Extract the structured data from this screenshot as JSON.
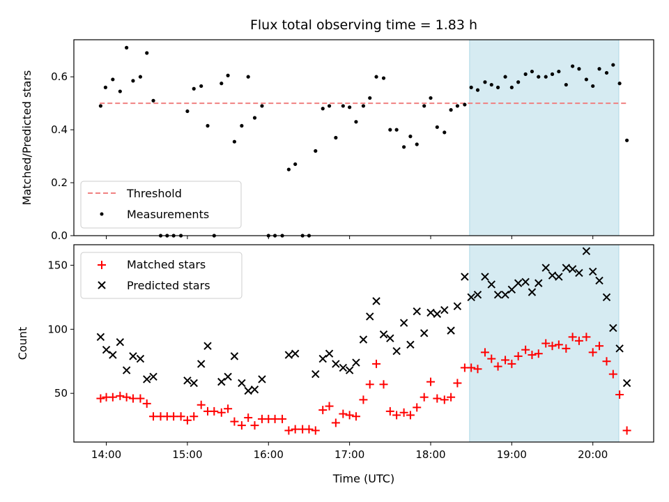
{
  "chart_data": {
    "type": "scatter",
    "title": "Flux total observing time = 1.83 h",
    "xlabel": "Time (UTC)",
    "x_tick_labels": [
      "14:00",
      "15:00",
      "16:00",
      "17:00",
      "18:00",
      "19:00",
      "20:00"
    ],
    "x_ticks": [
      14,
      15,
      16,
      17,
      18,
      19,
      20
    ],
    "xlim": [
      13.6,
      20.75
    ],
    "highlight_span": [
      18.48,
      20.32
    ],
    "colors": {
      "threshold": "#f08080",
      "measurements": "#000000",
      "matched": "#ff0000",
      "predicted": "#000000",
      "span_fill": "#add8e6"
    },
    "panels": [
      {
        "ylabel": "Matched/Predicted stars",
        "ylim": [
          0,
          0.74
        ],
        "y_ticks": [
          0.0,
          0.2,
          0.4,
          0.6
        ],
        "y_tick_labels": [
          "0.0",
          "0.2",
          "0.4",
          "0.6"
        ],
        "legend_position": "lower-left",
        "threshold": {
          "name": "Threshold",
          "value": 0.5
        },
        "series": [
          {
            "name": "Measurements",
            "marker": "dot",
            "points": [
              [
                13.93,
                0.49
              ],
              [
                13.99,
                0.56
              ],
              [
                14.08,
                0.59
              ],
              [
                14.17,
                0.545
              ],
              [
                14.25,
                0.71
              ],
              [
                14.33,
                0.585
              ],
              [
                14.42,
                0.6
              ],
              [
                14.5,
                0.69
              ],
              [
                14.58,
                0.51
              ],
              [
                14.67,
                0.0
              ],
              [
                14.75,
                0.0
              ],
              [
                14.83,
                0.0
              ],
              [
                14.92,
                0.0
              ],
              [
                15.0,
                0.47
              ],
              [
                15.08,
                0.555
              ],
              [
                15.17,
                0.565
              ],
              [
                15.25,
                0.415
              ],
              [
                15.33,
                0.0
              ],
              [
                15.42,
                0.575
              ],
              [
                15.5,
                0.605
              ],
              [
                15.58,
                0.355
              ],
              [
                15.67,
                0.415
              ],
              [
                15.75,
                0.6
              ],
              [
                15.83,
                0.445
              ],
              [
                15.92,
                0.49
              ],
              [
                16.0,
                0.0
              ],
              [
                16.08,
                0.0
              ],
              [
                16.17,
                0.0
              ],
              [
                16.25,
                0.25
              ],
              [
                16.33,
                0.27
              ],
              [
                16.42,
                0.0
              ],
              [
                16.5,
                0.0
              ],
              [
                16.58,
                0.32
              ],
              [
                16.67,
                0.48
              ],
              [
                16.75,
                0.49
              ],
              [
                16.83,
                0.37
              ],
              [
                16.92,
                0.49
              ],
              [
                17.0,
                0.485
              ],
              [
                17.08,
                0.43
              ],
              [
                17.17,
                0.49
              ],
              [
                17.25,
                0.52
              ],
              [
                17.33,
                0.6
              ],
              [
                17.42,
                0.595
              ],
              [
                17.5,
                0.4
              ],
              [
                17.58,
                0.4
              ],
              [
                17.67,
                0.335
              ],
              [
                17.75,
                0.375
              ],
              [
                17.83,
                0.345
              ],
              [
                17.92,
                0.49
              ],
              [
                18.0,
                0.52
              ],
              [
                18.08,
                0.41
              ],
              [
                18.17,
                0.39
              ],
              [
                18.25,
                0.475
              ],
              [
                18.33,
                0.49
              ],
              [
                18.42,
                0.495
              ],
              [
                18.5,
                0.56
              ],
              [
                18.58,
                0.55
              ],
              [
                18.67,
                0.58
              ],
              [
                18.75,
                0.57
              ],
              [
                18.83,
                0.56
              ],
              [
                18.92,
                0.6
              ],
              [
                19.0,
                0.56
              ],
              [
                19.08,
                0.58
              ],
              [
                19.17,
                0.61
              ],
              [
                19.25,
                0.62
              ],
              [
                19.33,
                0.6
              ],
              [
                19.42,
                0.6
              ],
              [
                19.5,
                0.61
              ],
              [
                19.58,
                0.62
              ],
              [
                19.67,
                0.57
              ],
              [
                19.75,
                0.64
              ],
              [
                19.83,
                0.63
              ],
              [
                19.92,
                0.59
              ],
              [
                20.0,
                0.565
              ],
              [
                20.08,
                0.63
              ],
              [
                20.17,
                0.615
              ],
              [
                20.25,
                0.645
              ],
              [
                20.33,
                0.575
              ],
              [
                20.42,
                0.36
              ]
            ]
          }
        ]
      },
      {
        "ylabel": "Count",
        "ylim": [
          12,
          166
        ],
        "y_ticks": [
          50,
          100,
          150
        ],
        "y_tick_labels": [
          "50",
          "100",
          "150"
        ],
        "legend_position": "upper-left",
        "series": [
          {
            "name": "Matched stars",
            "marker": "plus",
            "points": [
              [
                13.93,
                46
              ],
              [
                14.0,
                47
              ],
              [
                14.08,
                47
              ],
              [
                14.17,
                48
              ],
              [
                14.25,
                47
              ],
              [
                14.33,
                46
              ],
              [
                14.42,
                46
              ],
              [
                14.5,
                42
              ],
              [
                14.58,
                32
              ],
              [
                14.67,
                32
              ],
              [
                14.75,
                32
              ],
              [
                14.83,
                32
              ],
              [
                14.92,
                32
              ],
              [
                15.0,
                29
              ],
              [
                15.08,
                32
              ],
              [
                15.17,
                41
              ],
              [
                15.25,
                36
              ],
              [
                15.33,
                36
              ],
              [
                15.42,
                35
              ],
              [
                15.5,
                38
              ],
              [
                15.58,
                28
              ],
              [
                15.67,
                25
              ],
              [
                15.75,
                31
              ],
              [
                15.83,
                25
              ],
              [
                15.92,
                30
              ],
              [
                16.0,
                30
              ],
              [
                16.08,
                30
              ],
              [
                16.17,
                30
              ],
              [
                16.25,
                21
              ],
              [
                16.33,
                22
              ],
              [
                16.42,
                22
              ],
              [
                16.5,
                22
              ],
              [
                16.58,
                21
              ],
              [
                16.67,
                37
              ],
              [
                16.75,
                40
              ],
              [
                16.83,
                27
              ],
              [
                16.92,
                34
              ],
              [
                17.0,
                33
              ],
              [
                17.08,
                32
              ],
              [
                17.17,
                45
              ],
              [
                17.25,
                57
              ],
              [
                17.33,
                73
              ],
              [
                17.42,
                57
              ],
              [
                17.5,
                36
              ],
              [
                17.58,
                33
              ],
              [
                17.67,
                35
              ],
              [
                17.75,
                33
              ],
              [
                17.83,
                39
              ],
              [
                17.92,
                47
              ],
              [
                18.0,
                59
              ],
              [
                18.08,
                46
              ],
              [
                18.17,
                45
              ],
              [
                18.25,
                47
              ],
              [
                18.33,
                58
              ],
              [
                18.42,
                70
              ],
              [
                18.5,
                70
              ],
              [
                18.58,
                69
              ],
              [
                18.67,
                82
              ],
              [
                18.75,
                77
              ],
              [
                18.83,
                71
              ],
              [
                18.92,
                76
              ],
              [
                19.0,
                73
              ],
              [
                19.08,
                79
              ],
              [
                19.17,
                84
              ],
              [
                19.25,
                80
              ],
              [
                19.33,
                81
              ],
              [
                19.42,
                89
              ],
              [
                19.5,
                87
              ],
              [
                19.58,
                88
              ],
              [
                19.67,
                85
              ],
              [
                19.75,
                94
              ],
              [
                19.83,
                91
              ],
              [
                19.92,
                94
              ],
              [
                20.0,
                82
              ],
              [
                20.08,
                87
              ],
              [
                20.17,
                75
              ],
              [
                20.25,
                65
              ],
              [
                20.33,
                49
              ],
              [
                20.42,
                21
              ]
            ]
          },
          {
            "name": "Predicted stars",
            "marker": "x",
            "points": [
              [
                13.93,
                94
              ],
              [
                14.0,
                84
              ],
              [
                14.08,
                80
              ],
              [
                14.17,
                90
              ],
              [
                14.25,
                68
              ],
              [
                14.33,
                79
              ],
              [
                14.42,
                77
              ],
              [
                14.5,
                61
              ],
              [
                14.58,
                63
              ],
              [
                15.0,
                60
              ],
              [
                15.08,
                58
              ],
              [
                15.17,
                73
              ],
              [
                15.25,
                87
              ],
              [
                15.42,
                59
              ],
              [
                15.5,
                63
              ],
              [
                15.58,
                79
              ],
              [
                15.67,
                58
              ],
              [
                15.75,
                52
              ],
              [
                15.83,
                53
              ],
              [
                15.92,
                61
              ],
              [
                16.25,
                80
              ],
              [
                16.33,
                81
              ],
              [
                16.58,
                65
              ],
              [
                16.67,
                77
              ],
              [
                16.75,
                81
              ],
              [
                16.83,
                73
              ],
              [
                16.92,
                70
              ],
              [
                17.0,
                68
              ],
              [
                17.08,
                74
              ],
              [
                17.17,
                92
              ],
              [
                17.25,
                110
              ],
              [
                17.33,
                122
              ],
              [
                17.42,
                96
              ],
              [
                17.5,
                93
              ],
              [
                17.58,
                83
              ],
              [
                17.67,
                105
              ],
              [
                17.75,
                88
              ],
              [
                17.83,
                114
              ],
              [
                17.92,
                97
              ],
              [
                18.0,
                113
              ],
              [
                18.08,
                112
              ],
              [
                18.17,
                115
              ],
              [
                18.25,
                99
              ],
              [
                18.33,
                118
              ],
              [
                18.42,
                141
              ],
              [
                18.5,
                125
              ],
              [
                18.58,
                127
              ],
              [
                18.67,
                141
              ],
              [
                18.75,
                135
              ],
              [
                18.83,
                127
              ],
              [
                18.92,
                127
              ],
              [
                19.0,
                131
              ],
              [
                19.08,
                136
              ],
              [
                19.17,
                137
              ],
              [
                19.25,
                129
              ],
              [
                19.33,
                136
              ],
              [
                19.42,
                148
              ],
              [
                19.5,
                142
              ],
              [
                19.58,
                141
              ],
              [
                19.67,
                148
              ],
              [
                19.75,
                147
              ],
              [
                19.83,
                144
              ],
              [
                19.92,
                161
              ],
              [
                20.0,
                145
              ],
              [
                20.08,
                138
              ],
              [
                20.17,
                125
              ],
              [
                20.25,
                101
              ],
              [
                20.33,
                85
              ],
              [
                20.42,
                58
              ]
            ]
          }
        ]
      }
    ]
  }
}
